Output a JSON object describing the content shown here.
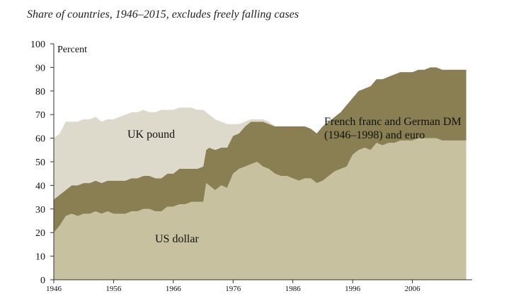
{
  "chart_data": {
    "type": "area",
    "subtitle": "Share of countries, 1946–2015, excludes freely falling cases",
    "ylabel": "Percent",
    "ylim": [
      0,
      100
    ],
    "xlim": [
      1946,
      2016
    ],
    "yticks": [
      0,
      10,
      20,
      30,
      40,
      50,
      60,
      70,
      80,
      90,
      100
    ],
    "xticks": [
      1946,
      1956,
      1966,
      1976,
      1986,
      1996,
      2006
    ],
    "stacking": "cumulative",
    "series": [
      {
        "name": "US dollar",
        "color": "#c8c1a0",
        "label_lines": [
          "US dollar"
        ],
        "x": [
          1946,
          1947,
          1948,
          1949,
          1950,
          1951,
          1952,
          1953,
          1954,
          1955,
          1956,
          1957,
          1958,
          1959,
          1960,
          1961,
          1962,
          1963,
          1964,
          1965,
          1966,
          1967,
          1968,
          1969,
          1970,
          1971,
          1971.5,
          1972,
          1973,
          1974,
          1975,
          1976,
          1977,
          1978,
          1979,
          1980,
          1981,
          1982,
          1983,
          1984,
          1985,
          1986,
          1987,
          1988,
          1989,
          1990,
          1991,
          1992,
          1993,
          1994,
          1995,
          1996,
          1997,
          1998,
          1999,
          2000,
          2001,
          2002,
          2003,
          2004,
          2005,
          2006,
          2007,
          2008,
          2009,
          2010,
          2011,
          2012,
          2013,
          2014,
          2015
        ],
        "values": [
          20,
          23,
          27,
          28,
          27,
          28,
          28,
          29,
          28,
          29,
          28,
          28,
          28,
          29,
          29,
          30,
          30,
          29,
          29,
          31,
          31,
          32,
          32,
          33,
          33,
          33,
          41,
          40,
          38,
          40,
          39,
          45,
          47,
          48,
          49,
          50,
          48,
          47,
          45,
          44,
          44,
          43,
          42,
          43,
          43,
          41,
          42,
          44,
          46,
          47,
          48,
          53,
          55,
          56,
          55,
          58,
          57,
          58,
          58,
          59,
          59,
          59,
          60,
          60,
          60,
          60,
          59,
          59,
          59,
          59,
          59
        ]
      },
      {
        "name": "French franc and German DM (1946–1998) and euro",
        "color": "#8a7f52",
        "label_lines": [
          "French franc and German DM",
          "(1946–1998) and euro"
        ],
        "x": [
          1946,
          1947,
          1948,
          1949,
          1950,
          1951,
          1952,
          1953,
          1954,
          1955,
          1956,
          1957,
          1958,
          1959,
          1960,
          1961,
          1962,
          1963,
          1964,
          1965,
          1966,
          1967,
          1968,
          1969,
          1970,
          1971,
          1971.5,
          1972,
          1973,
          1974,
          1975,
          1976,
          1977,
          1978,
          1979,
          1980,
          1981,
          1982,
          1983,
          1984,
          1985,
          1986,
          1987,
          1988,
          1989,
          1990,
          1991,
          1992,
          1993,
          1994,
          1995,
          1996,
          1997,
          1998,
          1999,
          2000,
          2001,
          2002,
          2003,
          2004,
          2005,
          2006,
          2007,
          2008,
          2009,
          2010,
          2011,
          2012,
          2013,
          2014,
          2015
        ],
        "values": [
          14,
          13,
          11,
          12,
          13,
          13,
          13,
          13,
          13,
          13,
          14,
          14,
          14,
          14,
          14,
          14,
          14,
          14,
          14,
          14,
          14,
          15,
          15,
          14,
          14,
          15,
          14,
          16,
          17,
          16,
          17,
          16,
          15,
          17,
          18,
          17,
          19,
          19,
          20,
          21,
          21,
          22,
          23,
          22,
          21,
          21,
          23,
          23,
          23,
          24,
          26,
          24,
          25,
          25,
          27,
          27,
          28,
          28,
          29,
          29,
          29,
          29,
          29,
          29,
          30,
          30,
          30,
          30,
          30,
          30,
          30
        ]
      },
      {
        "name": "UK pound",
        "color": "#dddacb",
        "label_lines": [
          "UK pound"
        ],
        "x": [
          1946,
          1947,
          1948,
          1949,
          1950,
          1951,
          1952,
          1953,
          1954,
          1955,
          1956,
          1957,
          1958,
          1959,
          1960,
          1961,
          1962,
          1963,
          1964,
          1965,
          1966,
          1967,
          1968,
          1969,
          1970,
          1971,
          1971.5,
          1972,
          1973,
          1974,
          1975,
          1976,
          1977,
          1978,
          1979,
          1980,
          1981,
          1982,
          1983,
          1984,
          1985,
          1986,
          1987,
          1988,
          1989,
          1990,
          1991,
          1992,
          1993,
          1994,
          1995,
          1996,
          1997,
          1998,
          1999,
          2000,
          2001,
          2002,
          2003,
          2004,
          2005,
          2006,
          2007,
          2008,
          2009,
          2010,
          2011,
          2012,
          2013,
          2014,
          2015
        ],
        "values": [
          26,
          26,
          29,
          27,
          27,
          27,
          27,
          27,
          26,
          26,
          26,
          27,
          28,
          28,
          28,
          28,
          27,
          28,
          29,
          27,
          27,
          26,
          26,
          26,
          25,
          24,
          16,
          14,
          13,
          11,
          10,
          5,
          4,
          2,
          1,
          1,
          1,
          1,
          0,
          0,
          0,
          0,
          0,
          0,
          0,
          0,
          0,
          0,
          0,
          0,
          0,
          0,
          0,
          0,
          0,
          0,
          0,
          0,
          0,
          0,
          0,
          0,
          0,
          0,
          0,
          0,
          0,
          0,
          0,
          0,
          0
        ]
      }
    ],
    "grid": false,
    "legend": "inline labels"
  }
}
